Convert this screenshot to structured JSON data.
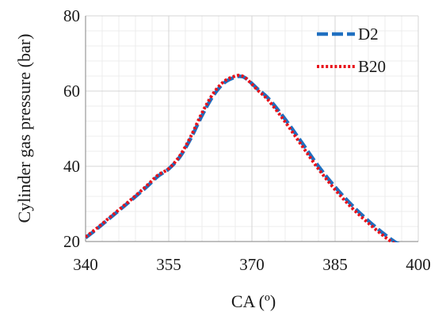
{
  "chart_data": {
    "type": "line",
    "xlabel": "CA (º)",
    "ylabel": "Cylinder  gas pressure (bar)",
    "xlim": [
      340,
      400
    ],
    "ylim": [
      20,
      80
    ],
    "x_ticks": [
      "340",
      "355",
      "370",
      "385",
      "400"
    ],
    "y_ticks": [
      "20",
      "40",
      "60",
      "80"
    ],
    "grid": true,
    "legend_position": "top-right",
    "series": [
      {
        "name": "D2",
        "color": "#1f6fc0",
        "dash": "long-dash",
        "x": [
          340,
          342,
          345,
          348,
          351,
          353,
          355,
          357,
          359,
          361,
          363,
          365,
          367,
          368,
          369,
          371,
          373,
          376,
          379,
          382,
          385,
          388,
          391,
          394,
          396,
          397
        ],
        "y": [
          21,
          23.3,
          27,
          30.7,
          34.5,
          37.3,
          39.3,
          42.5,
          47.5,
          53.5,
          58.7,
          62.2,
          63.7,
          63.9,
          63.3,
          60.6,
          58,
          52.5,
          46.3,
          40,
          34.5,
          29.7,
          25.5,
          21.8,
          19.7,
          19.2
        ]
      },
      {
        "name": "B20",
        "color": "#e8121a",
        "dash": "dotted",
        "x": [
          340,
          342,
          345,
          348,
          351,
          353,
          355,
          357,
          359,
          361,
          363,
          365,
          367,
          368,
          369,
          371,
          373,
          376,
          379,
          382,
          385,
          388,
          391,
          394,
          396,
          397
        ],
        "y": [
          21.2,
          23.5,
          27.2,
          30.9,
          34.8,
          37.6,
          39.4,
          42.8,
          48,
          54.2,
          59.3,
          62.6,
          64,
          64.1,
          63.3,
          60.3,
          57.5,
          51.8,
          45.5,
          39.3,
          33.8,
          29,
          24.9,
          21.2,
          19.2,
          18.8
        ]
      }
    ]
  }
}
